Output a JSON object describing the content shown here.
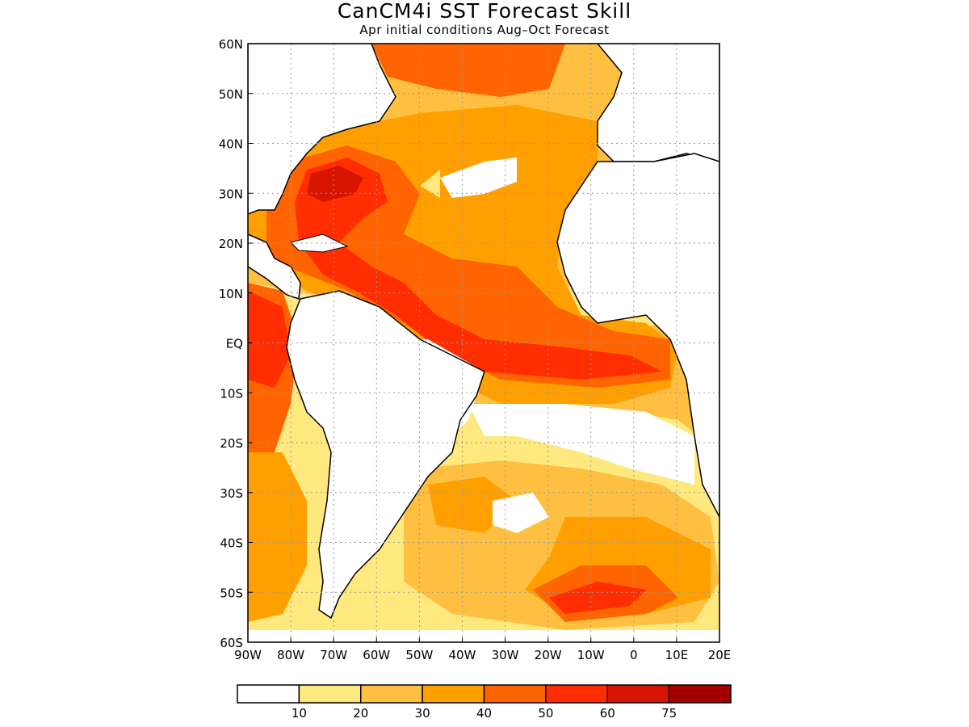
{
  "title": "CanCM4i SST Forecast Skill",
  "subtitle": "Apr initial conditions  Aug–Oct Forecast",
  "map": {
    "lon_range": [
      -90,
      20
    ],
    "lat_range": [
      -60,
      60
    ],
    "lat_ticks": [
      "60N",
      "50N",
      "40N",
      "30N",
      "20N",
      "10N",
      "EQ",
      "10S",
      "20S",
      "30S",
      "40S",
      "50S",
      "60S"
    ],
    "lon_ticks": [
      "90W",
      "80W",
      "70W",
      "60W",
      "50W",
      "40W",
      "30W",
      "20W",
      "10W",
      "0",
      "10E",
      "20E"
    ],
    "grid": "dotted"
  },
  "colorbar": {
    "labels": [
      "10",
      "20",
      "30",
      "40",
      "50",
      "60",
      "75"
    ],
    "colors": [
      "#ffffff",
      "#ffe97f",
      "#ffc041",
      "#ff9f00",
      "#ff6400",
      "#ff2d00",
      "#d71400",
      "#a50000"
    ]
  }
}
